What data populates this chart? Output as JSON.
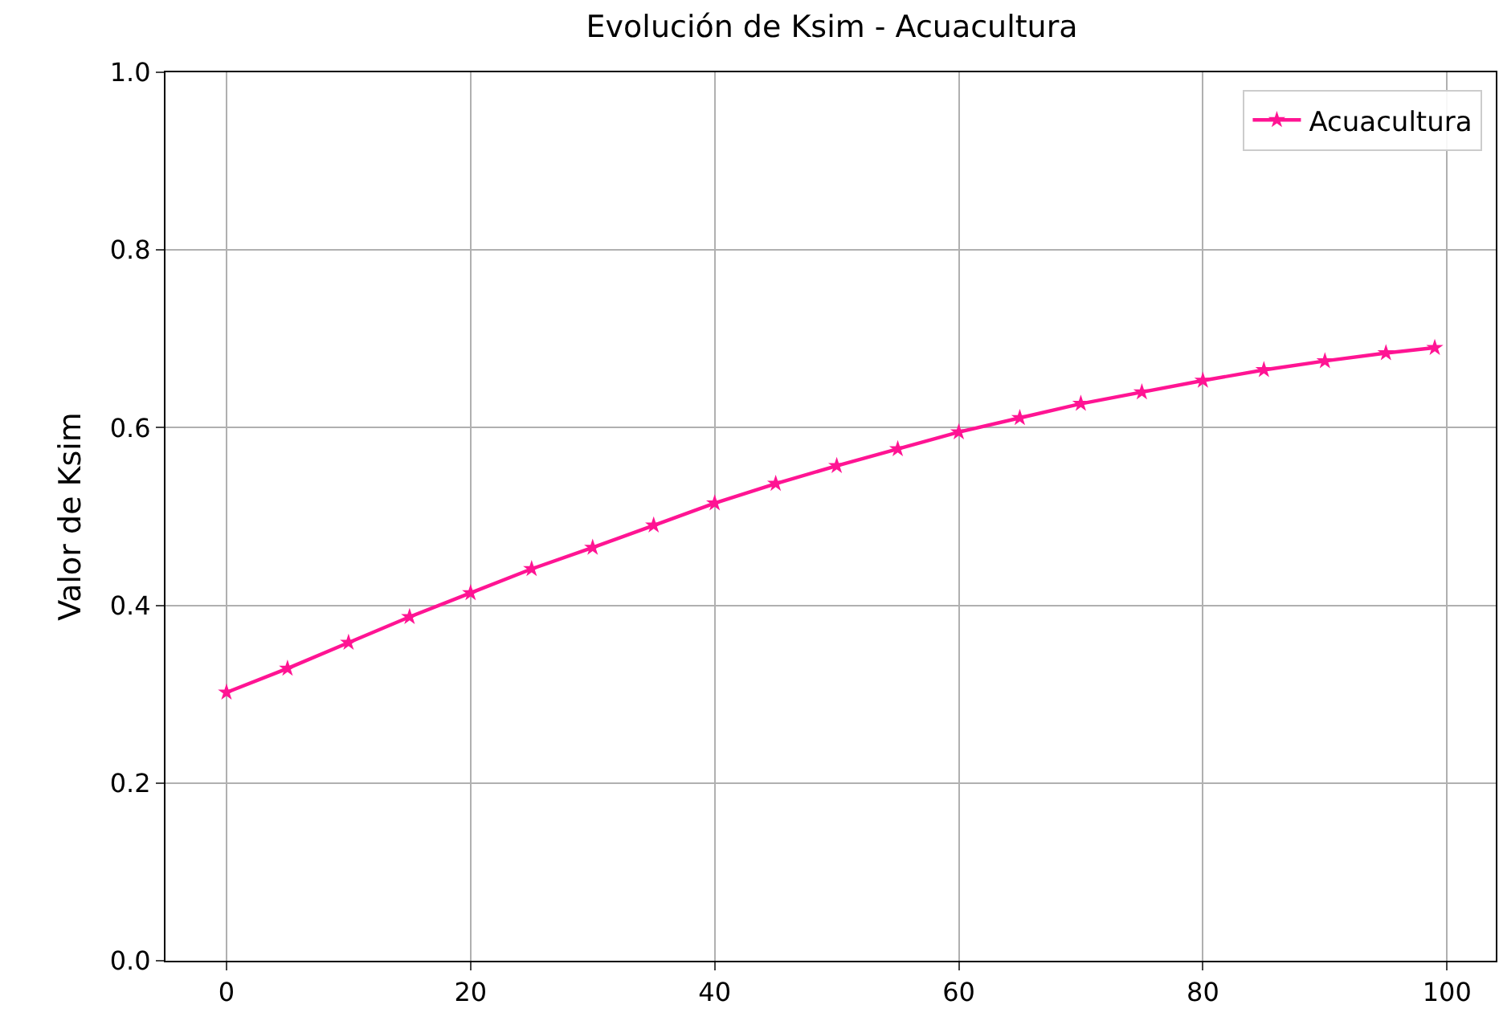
{
  "chart_data": {
    "type": "line",
    "title": "Evolución de Ksim - Acuacultura",
    "ylabel": "Valor de Ksim",
    "x": [
      0,
      5,
      10,
      15,
      20,
      25,
      30,
      35,
      40,
      45,
      50,
      55,
      60,
      65,
      70,
      75,
      80,
      85,
      90,
      95,
      99
    ],
    "series": [
      {
        "name": "Acuacultura",
        "color": "#ff1493",
        "values": [
          0.302,
          0.329,
          0.358,
          0.387,
          0.414,
          0.441,
          0.465,
          0.49,
          0.515,
          0.537,
          0.557,
          0.576,
          0.595,
          0.611,
          0.627,
          0.64,
          0.653,
          0.665,
          0.675,
          0.684,
          0.69
        ]
      }
    ],
    "xlim": [
      -5,
      104
    ],
    "xticks": [
      0,
      20,
      40,
      60,
      80,
      100
    ],
    "ylim": [
      0,
      1
    ],
    "yticks": [
      {
        "value": 0,
        "label": "0.0"
      },
      0.2,
      0.4,
      0.6,
      0.8,
      {
        "value": 1,
        "label": "1.0"
      }
    ],
    "grid": true,
    "legend": "top right",
    "marker": "star",
    "line_style": "solid"
  }
}
